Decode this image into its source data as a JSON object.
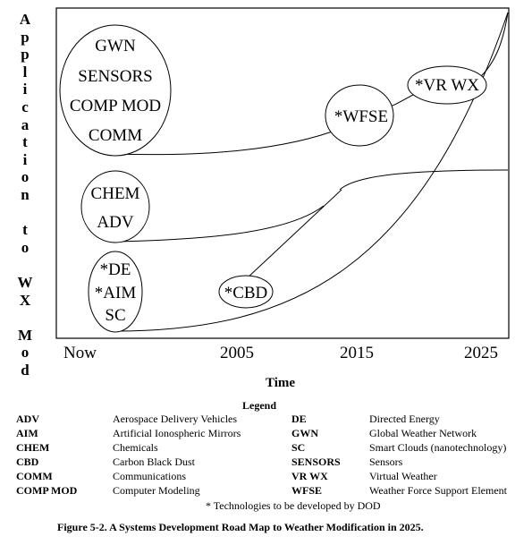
{
  "diagram": {
    "y_axis_title": "Application to WX Mod",
    "x_axis_title": "Time",
    "x_ticks": [
      "Now",
      "2005",
      "2015",
      "2025"
    ],
    "nodes": {
      "group1": [
        "GWN",
        "SENSORS",
        "COMP MOD",
        "COMM"
      ],
      "group2": [
        "CHEM",
        "ADV"
      ],
      "group3": [
        "*DE",
        "*AIM",
        "SC"
      ],
      "cbd": "*CBD",
      "wfse": "*WFSE",
      "vrwx": "*VR WX"
    }
  },
  "legend": {
    "title": "Legend",
    "left": [
      {
        "abbr": "ADV",
        "definition": "Aerospace Delivery Vehicles"
      },
      {
        "abbr": "AIM",
        "definition": "Artificial Ionospheric Mirrors"
      },
      {
        "abbr": "CHEM",
        "definition": "Chemicals"
      },
      {
        "abbr": "CBD",
        "definition": "Carbon Black Dust"
      },
      {
        "abbr": "COMM",
        "definition": "Communications"
      },
      {
        "abbr": "COMP MOD",
        "definition": "Computer Modeling"
      }
    ],
    "right": [
      {
        "abbr": "DE",
        "definition": "Directed Energy"
      },
      {
        "abbr": "GWN",
        "definition": "Global Weather Network"
      },
      {
        "abbr": "SC",
        "definition": "Smart Clouds (nanotechnology)"
      },
      {
        "abbr": "SENSORS",
        "definition": "Sensors"
      },
      {
        "abbr": "VR WX",
        "definition": "Virtual Weather"
      },
      {
        "abbr": "WFSE",
        "definition": "Weather Force Support Element"
      }
    ],
    "note": "*  Technologies to be developed by DOD"
  },
  "caption": "Figure 5-2.  A Systems Development Road Map to Weather Modification in 2025."
}
